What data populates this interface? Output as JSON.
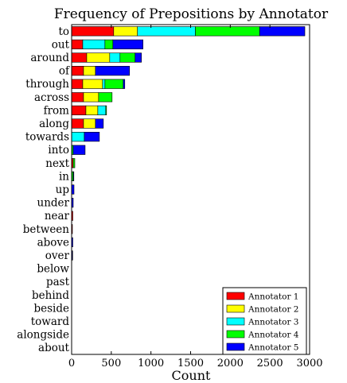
{
  "chart_data": {
    "type": "bar",
    "orientation": "horizontal",
    "stacked": true,
    "title": "Frequency of Prepositions by Annotator",
    "xlabel": "Count",
    "ylabel": "",
    "xlim": [
      0,
      3000
    ],
    "xticks": [
      0,
      500,
      1000,
      1500,
      2000,
      2500,
      3000
    ],
    "grid": false,
    "legend_position": "bottom-right",
    "categories": [
      "to",
      "out",
      "around",
      "of",
      "through",
      "across",
      "from",
      "along",
      "towards",
      "into",
      "next",
      "in",
      "up",
      "under",
      "near",
      "between",
      "above",
      "over",
      "below",
      "past",
      "behind",
      "beside",
      "toward",
      "alongside",
      "about"
    ],
    "series": [
      {
        "name": "Annotator 1",
        "color": "#ff0000",
        "values": [
          530,
          140,
          190,
          150,
          140,
          150,
          180,
          150,
          0,
          0,
          20,
          0,
          0,
          0,
          15,
          10,
          0,
          5,
          0,
          0,
          0,
          0,
          0,
          0,
          0
        ]
      },
      {
        "name": "Annotator 2",
        "color": "#ffff00",
        "values": [
          300,
          0,
          290,
          150,
          250,
          190,
          150,
          150,
          0,
          0,
          0,
          0,
          0,
          0,
          0,
          0,
          0,
          0,
          0,
          0,
          0,
          0,
          0,
          0,
          0
        ]
      },
      {
        "name": "Annotator 3",
        "color": "#00ffff",
        "values": [
          730,
          280,
          130,
          0,
          30,
          0,
          100,
          0,
          160,
          0,
          0,
          0,
          0,
          0,
          0,
          0,
          0,
          0,
          0,
          0,
          0,
          0,
          0,
          0,
          0
        ]
      },
      {
        "name": "Annotator 4",
        "color": "#00ff00",
        "values": [
          810,
          100,
          190,
          0,
          230,
          170,
          10,
          0,
          0,
          20,
          20,
          20,
          0,
          0,
          0,
          0,
          0,
          0,
          0,
          0,
          0,
          0,
          0,
          0,
          0
        ]
      },
      {
        "name": "Annotator 5",
        "color": "#0000ff",
        "values": [
          570,
          380,
          80,
          430,
          20,
          0,
          0,
          100,
          190,
          150,
          0,
          5,
          30,
          20,
          0,
          0,
          15,
          5,
          0,
          0,
          0,
          0,
          0,
          0,
          0
        ]
      }
    ]
  }
}
